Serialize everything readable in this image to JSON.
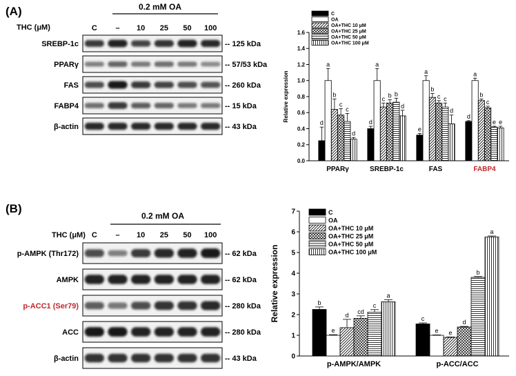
{
  "panels": [
    {
      "label": "(A)",
      "treatment_header": "0.2 mM OA",
      "thc_label": "THC (μM)",
      "lanes": [
        "C",
        "–",
        "10",
        "25",
        "50",
        "100"
      ],
      "blots": [
        {
          "protein": "SREBP-1c",
          "size": "-- 125 kDa",
          "protein_color": "#000000"
        },
        {
          "protein": "PPARγ",
          "size": "-- 57/53 kDa",
          "protein_color": "#000000"
        },
        {
          "protein": "FAS",
          "size": "-- 260 kDa",
          "protein_color": "#000000"
        },
        {
          "protein": "FABP4",
          "size": "-- 15 kDa",
          "protein_color": "#000000"
        },
        {
          "protein": "β-actin",
          "size": "-- 43 kDa",
          "protein_color": "#000000"
        }
      ]
    },
    {
      "label": "(B)",
      "treatment_header": "0.2 mM OA",
      "thc_label": "THC (μM)",
      "lanes": [
        "C",
        "–",
        "10",
        "25",
        "50",
        "100"
      ],
      "blots": [
        {
          "protein": "p-AMPK (Thr172)",
          "size": "-- 62 kDa",
          "protein_color": "#000000"
        },
        {
          "protein": "AMPK",
          "size": "-- 62 kDa",
          "protein_color": "#000000"
        },
        {
          "protein": "p-ACC1 (Ser79)",
          "size": "-- 280 kDa",
          "protein_color": "#c0282d"
        },
        {
          "protein": "ACC",
          "size": "-- 280 kDa",
          "protein_color": "#000000"
        },
        {
          "protein": "β-actin",
          "size": "-- 43 kDa",
          "protein_color": "#000000"
        }
      ]
    }
  ],
  "chart_data": [
    {
      "type": "bar",
      "title": "",
      "xlabel": "",
      "ylabel": "Relative expression",
      "ylim": [
        0,
        1.6
      ],
      "yticks": [
        "0.0",
        "0.2",
        "0.4",
        "0.6",
        "0.8",
        "1.0",
        "1.2",
        "1.4",
        "1.6"
      ],
      "categories": [
        "PPARγ",
        "SREBP-1c",
        "FAS",
        "FABP4"
      ],
      "category_colors": [
        "#000000",
        "#000000",
        "#000000",
        "#c0282d"
      ],
      "series": [
        {
          "name": "C",
          "values": [
            0.25,
            0.4,
            0.32,
            0.49
          ],
          "errors": [
            0.17,
            0.03,
            0.02,
            0.01
          ],
          "letters": [
            "d",
            "d",
            "e",
            "d"
          ]
        },
        {
          "name": "OA",
          "values": [
            1.0,
            1.0,
            1.0,
            1.0
          ],
          "errors": [
            0.15,
            0.15,
            0.06,
            0.03
          ],
          "letters": [
            "a",
            "a",
            "a",
            "a"
          ]
        },
        {
          "name": "OA+THC 10 μM",
          "values": [
            0.64,
            0.67,
            0.79,
            0.75
          ],
          "errors": [
            0.13,
            0.05,
            0.05,
            0.02
          ],
          "letters": [
            "b",
            "c",
            "b",
            "b"
          ]
        },
        {
          "name": "OA+THC 25 μM",
          "values": [
            0.57,
            0.72,
            0.72,
            0.66
          ],
          "errors": [
            0.08,
            0.04,
            0.03,
            0.02
          ],
          "letters": [
            "c",
            "b",
            "c",
            "c"
          ]
        },
        {
          "name": "OA+THC 50 μM",
          "values": [
            0.49,
            0.73,
            0.67,
            0.42
          ],
          "errors": [
            0.1,
            0.05,
            0.05,
            0.01
          ],
          "letters": [
            "c",
            "b",
            "c",
            "e"
          ]
        },
        {
          "name": "OA+THC 100 μM",
          "values": [
            0.27,
            0.56,
            0.46,
            0.41
          ],
          "errors": [
            0.02,
            0.07,
            0.11,
            0.02
          ],
          "letters": [
            "d",
            "d",
            "d",
            "e"
          ]
        }
      ]
    },
    {
      "type": "bar",
      "title": "",
      "xlabel": "",
      "ylabel": "Relative expression",
      "ylim": [
        0,
        7
      ],
      "yticks": [
        "0",
        "1",
        "2",
        "3",
        "4",
        "5",
        "6",
        "7"
      ],
      "categories": [
        "p-AMPK/AMPK",
        "p-ACC/ACC"
      ],
      "category_colors": [
        "#000000",
        "#000000"
      ],
      "series": [
        {
          "name": "C",
          "values": [
            2.25,
            1.55
          ],
          "errors": [
            0.12,
            0.05
          ],
          "letters": [
            "b",
            "c"
          ]
        },
        {
          "name": "OA",
          "values": [
            1.0,
            1.0
          ],
          "errors": [
            0.03,
            0.02
          ],
          "letters": [
            "e",
            "e"
          ]
        },
        {
          "name": "OA+THC 10 μM",
          "values": [
            1.37,
            0.9
          ],
          "errors": [
            0.4,
            0.02
          ],
          "letters": [
            "d",
            "e"
          ]
        },
        {
          "name": "OA+THC 25 μM",
          "values": [
            1.82,
            1.4
          ],
          "errors": [
            0.12,
            0.03
          ],
          "letters": [
            "cd",
            "d"
          ]
        },
        {
          "name": "OA+THC 50 μM",
          "values": [
            2.12,
            3.8
          ],
          "errors": [
            0.12,
            0.04
          ],
          "letters": [
            "c",
            "b"
          ]
        },
        {
          "name": "OA+THC 100 μM",
          "values": [
            2.62,
            5.75
          ],
          "errors": [
            0.1,
            0.05
          ],
          "letters": [
            "a",
            "a"
          ]
        }
      ]
    }
  ]
}
